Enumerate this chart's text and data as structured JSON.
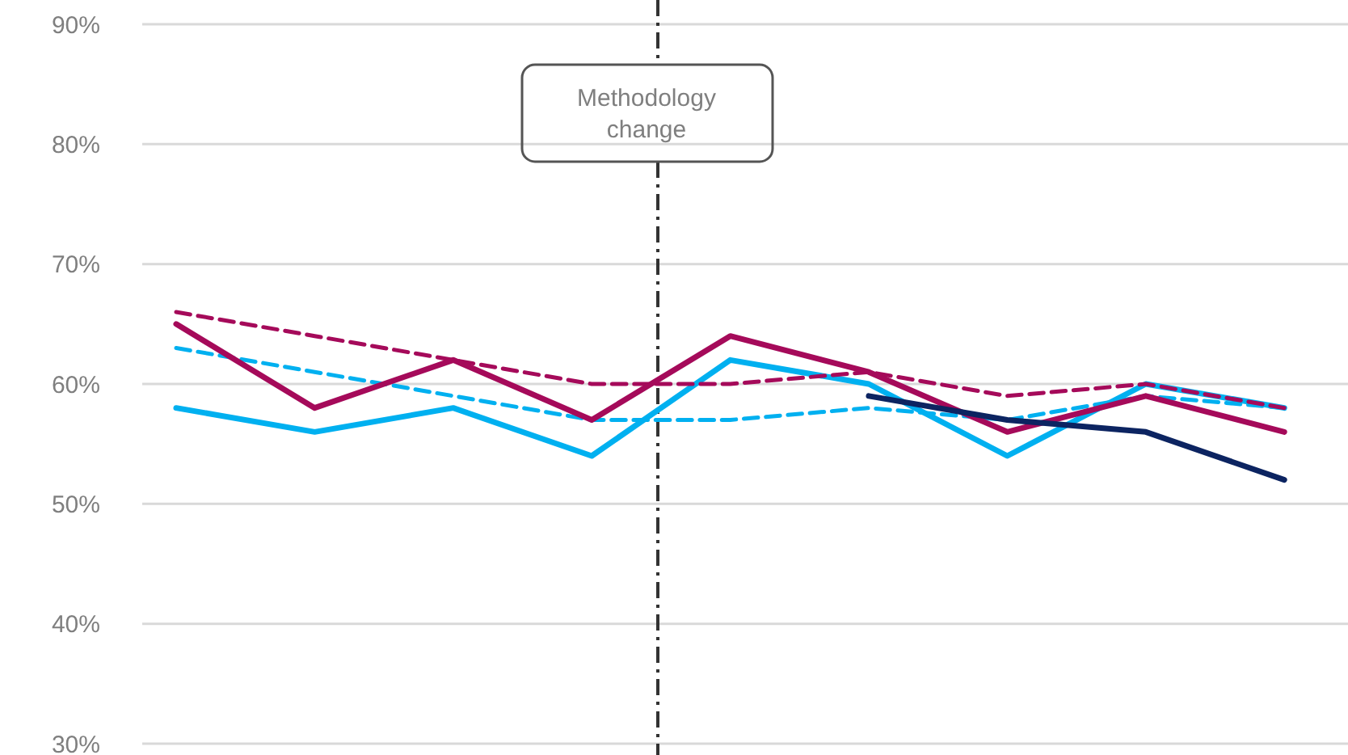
{
  "chart_data": {
    "type": "line",
    "categories": [
      null,
      null,
      null,
      null,
      null,
      null,
      null,
      null,
      null
    ],
    "ylim": [
      30,
      90
    ],
    "yticks": [
      {
        "value": 30,
        "label": "30%"
      },
      {
        "value": 40,
        "label": "40%"
      },
      {
        "value": 50,
        "label": "50%"
      },
      {
        "value": 60,
        "label": "60%"
      },
      {
        "value": 70,
        "label": "70%"
      },
      {
        "value": 80,
        "label": "80%"
      },
      {
        "value": 90,
        "label": "90%"
      }
    ],
    "tick_labels": "y",
    "grid": "y",
    "series": [
      {
        "color": "#00b0f0",
        "line_style": "solid",
        "values": [
          58,
          56,
          58,
          54,
          62,
          60,
          54,
          60,
          58
        ]
      },
      {
        "color": "#00b0f0",
        "line_style": "dashed",
        "values": [
          63,
          61,
          59,
          57,
          57,
          58,
          57,
          59,
          58
        ]
      },
      {
        "color": "#a50a5a",
        "line_style": "dashed",
        "values": [
          66,
          64,
          62,
          60,
          60,
          61,
          59,
          60,
          58
        ]
      },
      {
        "color": "#a50a5a",
        "line_style": "solid",
        "values": [
          65,
          58,
          62,
          57,
          64,
          61,
          56,
          59,
          56
        ]
      },
      {
        "color": "#0c2461",
        "line_style": "solid",
        "values": [
          null,
          null,
          null,
          null,
          null,
          59,
          57,
          56,
          52
        ]
      }
    ],
    "annotations": [
      "Methodology change"
    ]
  }
}
